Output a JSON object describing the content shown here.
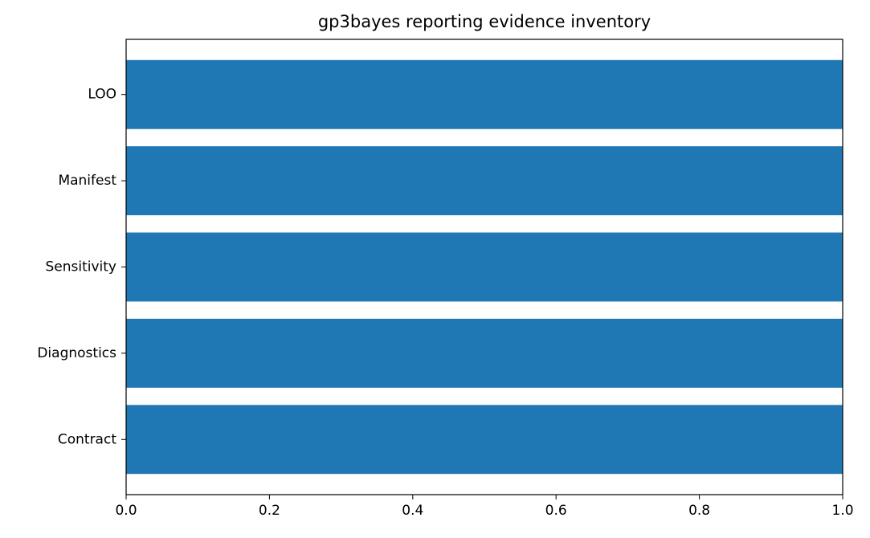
{
  "chart_data": {
    "type": "barh",
    "title": "gp3bayes reporting evidence inventory",
    "categories": [
      "Contract",
      "Diagnostics",
      "Sensitivity",
      "Manifest",
      "LOO"
    ],
    "values": [
      1,
      1,
      1,
      1,
      1
    ],
    "color": "#1f77b4",
    "xlim": [
      0,
      1
    ],
    "xticks": [
      {
        "value": 0,
        "label": "0.0"
      },
      0.2,
      0.4,
      0.6,
      0.8,
      {
        "value": 1,
        "label": "1.0"
      }
    ]
  }
}
